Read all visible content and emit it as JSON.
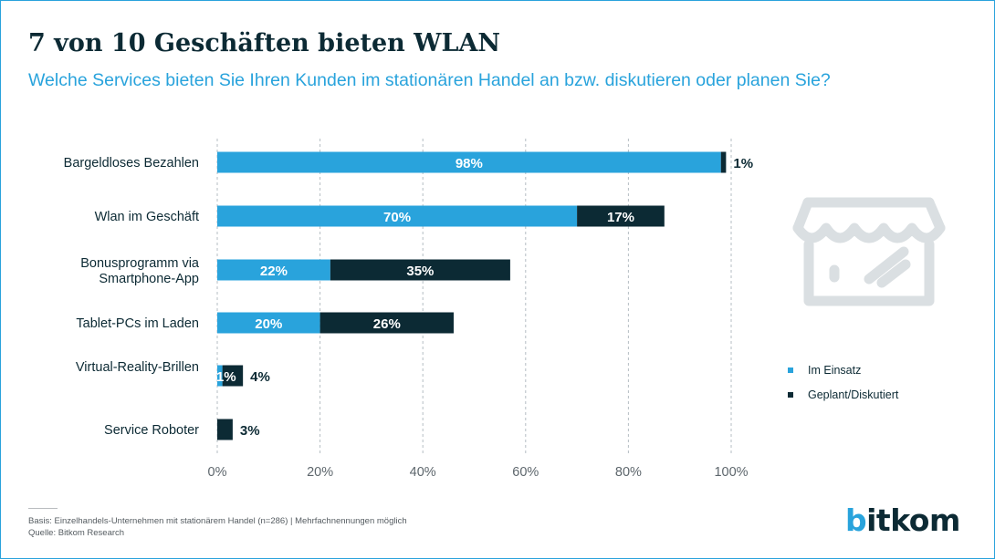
{
  "title": "7 von 10 Geschäften bieten WLAN",
  "subtitle": "Welche Services bieten Sie Ihren Kunden im stationären Handel an bzw. diskutieren oder planen Sie?",
  "footnote": "Basis: Einzelhandels-Unternehmen mit stationärem Handel (n=286) | Mehrfachnennungen möglich",
  "source": "Quelle: Bitkom Research",
  "logo": "bitkom",
  "icon": "storefront-icon",
  "colors": {
    "in_use": "#29a3dc",
    "planned": "#0c2a34",
    "grid": "#b5bdc3",
    "icon": "#dadfe2"
  },
  "chart_data": {
    "type": "bar",
    "orientation": "horizontal",
    "stacked": true,
    "categories": [
      "Bargeldloses Bezahlen",
      "Wlan im Geschäft",
      "Bonusprogramm via Smartphone-App",
      "Tablet-PCs im Laden",
      "Virtual-Reality-Brillen",
      "Service Roboter"
    ],
    "series": [
      {
        "name": "Im Einsatz",
        "values": [
          98,
          70,
          22,
          20,
          1,
          0
        ],
        "labels": [
          "98%",
          "70%",
          "22%",
          "20%",
          "1%",
          ""
        ]
      },
      {
        "name": "Geplant/Diskutiert",
        "values": [
          1,
          17,
          35,
          26,
          4,
          3
        ],
        "labels": [
          "1%",
          "17%",
          "35%",
          "26%",
          "4%",
          "3%"
        ]
      }
    ],
    "x_ticks": [
      "0%",
      "20%",
      "40%",
      "60%",
      "80%",
      "100%"
    ],
    "xlim": [
      0,
      100
    ],
    "grid": true,
    "legend": "right"
  }
}
